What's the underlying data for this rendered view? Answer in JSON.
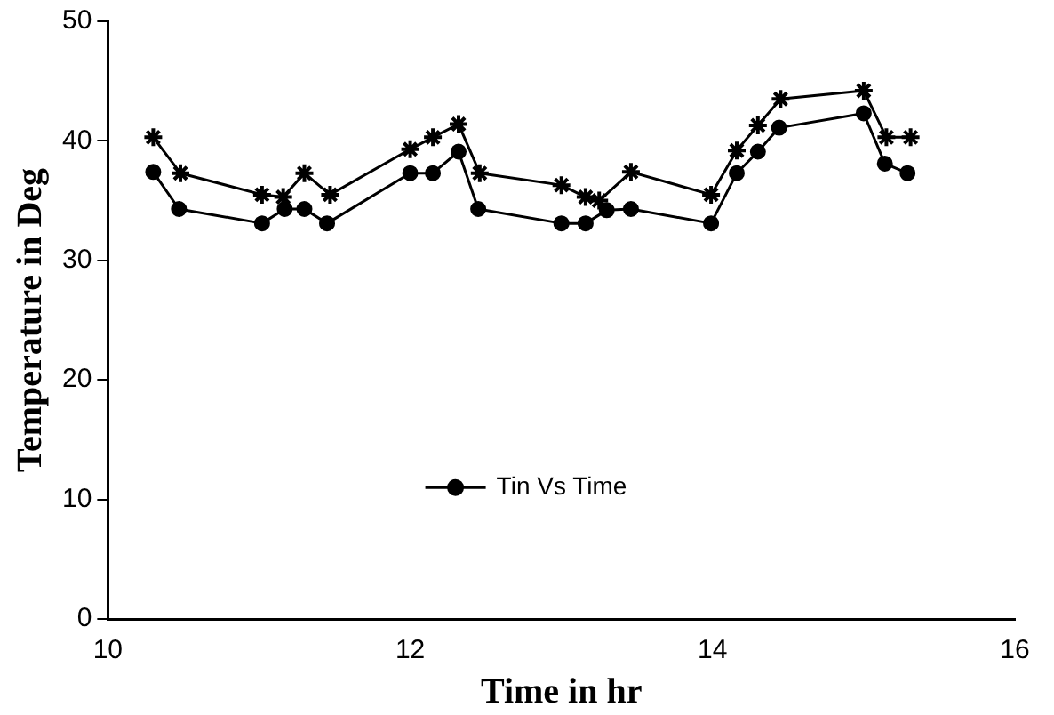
{
  "chart_data": {
    "type": "line",
    "xlabel": "Time in hr",
    "ylabel": "Temperature in Deg",
    "xlim": [
      10,
      16
    ],
    "xticks": [
      10,
      12,
      14,
      16
    ],
    "ylim": [
      0,
      50
    ],
    "yticks": [
      0,
      10,
      20,
      30,
      40,
      50
    ],
    "grid": false,
    "legend": "bottom",
    "line_style": "solid",
    "series": [
      {
        "name": "Tin Vs Time",
        "color": "#000000",
        "marker": "circle",
        "x": [
          10.3,
          10.47,
          11.02,
          11.17,
          11.3,
          11.45,
          12.0,
          12.15,
          12.32,
          12.45,
          13.0,
          13.16,
          13.3,
          13.46,
          13.99,
          14.16,
          14.3,
          14.44,
          15.0,
          15.14,
          15.29
        ],
        "values": [
          37.4,
          34.3,
          33.1,
          34.3,
          34.3,
          33.1,
          37.3,
          37.3,
          39.1,
          34.3,
          33.1,
          33.1,
          34.2,
          34.3,
          33.1,
          37.3,
          39.1,
          41.1,
          42.3,
          38.1,
          37.3
        ]
      },
      {
        "color": "#000000",
        "marker": "cross",
        "x": [
          10.3,
          10.48,
          11.02,
          11.16,
          11.3,
          11.47,
          12.0,
          12.15,
          12.32,
          12.46,
          13.0,
          13.16,
          13.25,
          13.46,
          13.99,
          14.16,
          14.3,
          14.45,
          15.0,
          15.15,
          15.31
        ],
        "values": [
          40.3,
          37.3,
          35.5,
          35.3,
          37.3,
          35.5,
          39.3,
          40.3,
          41.4,
          37.3,
          36.3,
          35.3,
          35,
          37.4,
          35.5,
          39.2,
          41.3,
          43.5,
          44.2,
          40.3,
          40.3
        ]
      }
    ]
  }
}
